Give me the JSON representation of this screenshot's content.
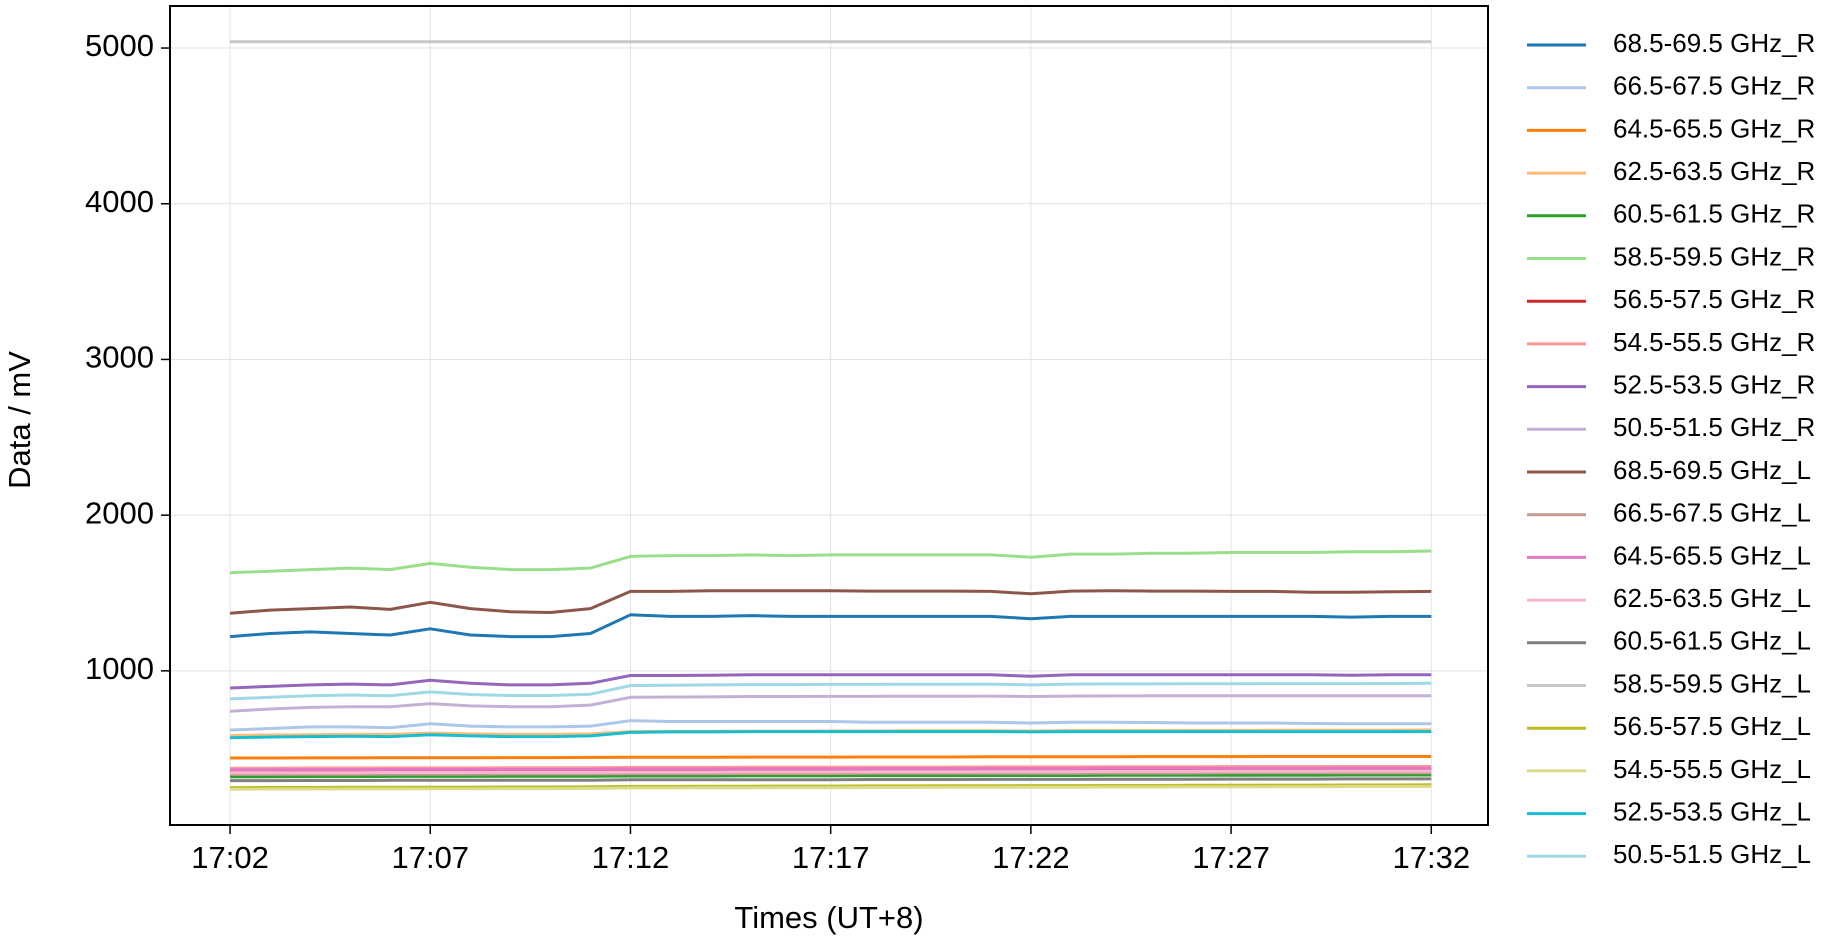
{
  "chart_data": {
    "type": "line",
    "x_label": "Times (UT+8)",
    "y_label": "Data / mV",
    "x": [
      "17:02",
      "17:03",
      "17:04",
      "17:05",
      "17:06",
      "17:07",
      "17:08",
      "17:09",
      "17:10",
      "17:11",
      "17:12",
      "17:13",
      "17:14",
      "17:15",
      "17:16",
      "17:17",
      "17:18",
      "17:19",
      "17:20",
      "17:21",
      "17:22",
      "17:23",
      "17:24",
      "17:25",
      "17:26",
      "17:27",
      "17:28",
      "17:29",
      "17:30",
      "17:31",
      "17:32"
    ],
    "xlim": [
      "17:00:30",
      "17:33:25"
    ],
    "xticks": [
      "17:02",
      "17:07",
      "17:12",
      "17:17",
      "17:22",
      "17:27",
      "17:32"
    ],
    "ylim": [
      10,
      5270
    ],
    "yticks": [
      1000,
      2000,
      3000,
      4000,
      5000
    ],
    "grid": true,
    "legend": "outside right",
    "series": [
      {
        "name": "68.5-69.5 GHz_R",
        "color": "#1f77b4",
        "values": [
          1220,
          1240,
          1250,
          1240,
          1230,
          1270,
          1230,
          1220,
          1220,
          1240,
          1360,
          1350,
          1350,
          1355,
          1350,
          1350,
          1350,
          1350,
          1350,
          1350,
          1335,
          1350,
          1350,
          1350,
          1350,
          1350,
          1350,
          1350,
          1345,
          1350,
          1350
        ]
      },
      {
        "name": "66.5-67.5 GHz_R",
        "color": "#aec7e8",
        "values": [
          620,
          630,
          640,
          640,
          635,
          660,
          645,
          640,
          640,
          645,
          680,
          675,
          675,
          675,
          675,
          675,
          670,
          670,
          670,
          670,
          665,
          670,
          670,
          668,
          665,
          665,
          665,
          662,
          660,
          660,
          660
        ]
      },
      {
        "name": "64.5-65.5 GHz_R",
        "color": "#ff7f0e",
        "values": [
          440,
          440,
          441,
          441,
          442,
          442,
          442,
          443,
          443,
          444,
          445,
          445,
          445,
          446,
          446,
          446,
          447,
          447,
          447,
          448,
          448,
          448,
          448,
          449,
          449,
          449,
          450,
          450,
          450,
          450,
          450
        ]
      },
      {
        "name": "62.5-63.5 GHz_R",
        "color": "#ffbb78",
        "values": [
          585,
          588,
          590,
          592,
          592,
          600,
          595,
          592,
          592,
          595,
          610,
          612,
          612,
          613,
          613,
          614,
          614,
          615,
          615,
          615,
          614,
          616,
          616,
          616,
          617,
          617,
          618,
          618,
          618,
          619,
          620
        ]
      },
      {
        "name": "60.5-61.5 GHz_R",
        "color": "#2ca02c",
        "values": [
          320,
          320,
          321,
          321,
          322,
          322,
          322,
          323,
          323,
          323,
          325,
          325,
          325,
          326,
          326,
          326,
          327,
          327,
          327,
          328,
          328,
          328,
          329,
          329,
          329,
          330,
          330,
          330,
          331,
          331,
          331
        ]
      },
      {
        "name": "58.5-59.5 GHz_R",
        "color": "#98df8a",
        "values": [
          1630,
          1640,
          1650,
          1660,
          1650,
          1690,
          1665,
          1650,
          1650,
          1660,
          1735,
          1740,
          1740,
          1745,
          1740,
          1745,
          1745,
          1745,
          1745,
          1745,
          1730,
          1750,
          1750,
          1755,
          1755,
          1760,
          1760,
          1760,
          1765,
          1765,
          1770
        ]
      },
      {
        "name": "56.5-57.5 GHz_R",
        "color": "#d62728",
        "values": [
          355,
          355,
          356,
          356,
          357,
          357,
          357,
          358,
          358,
          358,
          360,
          360,
          360,
          361,
          361,
          361,
          362,
          362,
          362,
          363,
          363,
          363,
          364,
          364,
          364,
          365,
          365,
          365,
          366,
          366,
          366
        ]
      },
      {
        "name": "54.5-55.5 GHz_R",
        "color": "#ff9896",
        "values": [
          375,
          375,
          376,
          376,
          377,
          377,
          377,
          378,
          378,
          378,
          380,
          380,
          380,
          381,
          381,
          381,
          382,
          382,
          382,
          383,
          383,
          383,
          384,
          384,
          384,
          385,
          385,
          385,
          386,
          386,
          386
        ]
      },
      {
        "name": "52.5-53.5 GHz_R",
        "color": "#9467bd",
        "values": [
          890,
          900,
          910,
          915,
          910,
          940,
          920,
          910,
          910,
          920,
          970,
          970,
          972,
          975,
          975,
          975,
          975,
          975,
          975,
          975,
          965,
          975,
          975,
          975,
          975,
          975,
          975,
          975,
          972,
          975,
          975
        ]
      },
      {
        "name": "50.5-51.5 GHz_R",
        "color": "#c5b0d5",
        "values": [
          740,
          755,
          765,
          770,
          770,
          790,
          775,
          770,
          770,
          780,
          830,
          832,
          833,
          835,
          835,
          836,
          836,
          837,
          837,
          838,
          835,
          838,
          839,
          840,
          840,
          840,
          840,
          840,
          840,
          840,
          840
        ]
      },
      {
        "name": "68.5-69.5 GHz_L",
        "color": "#8c564b",
        "values": [
          1370,
          1390,
          1400,
          1410,
          1395,
          1440,
          1400,
          1380,
          1375,
          1400,
          1510,
          1510,
          1515,
          1515,
          1515,
          1515,
          1512,
          1512,
          1512,
          1510,
          1495,
          1512,
          1515,
          1512,
          1512,
          1510,
          1510,
          1505,
          1505,
          1508,
          1510
        ]
      },
      {
        "name": "66.5-67.5 GHz_L",
        "color": "#c49c94",
        "values": [
          335,
          335,
          336,
          336,
          337,
          337,
          337,
          338,
          338,
          338,
          340,
          340,
          340,
          341,
          341,
          341,
          342,
          342,
          342,
          343,
          343,
          343,
          344,
          344,
          344,
          345,
          345,
          345,
          346,
          346,
          346
        ]
      },
      {
        "name": "64.5-65.5 GHz_L",
        "color": "#e377c2",
        "values": [
          365,
          365,
          366,
          366,
          367,
          367,
          367,
          368,
          368,
          368,
          370,
          370,
          370,
          371,
          371,
          371,
          372,
          372,
          372,
          373,
          373,
          373,
          374,
          374,
          374,
          375,
          375,
          375,
          376,
          376,
          376
        ]
      },
      {
        "name": "62.5-63.5 GHz_L",
        "color": "#f7b6d2",
        "values": [
          345,
          345,
          346,
          346,
          347,
          347,
          347,
          348,
          348,
          348,
          350,
          350,
          350,
          351,
          351,
          351,
          352,
          352,
          352,
          353,
          353,
          353,
          354,
          354,
          354,
          355,
          355,
          355,
          356,
          356,
          356
        ]
      },
      {
        "name": "60.5-61.5 GHz_L",
        "color": "#7f7f7f",
        "values": [
          295,
          295,
          296,
          296,
          297,
          297,
          297,
          298,
          298,
          298,
          300,
          300,
          300,
          301,
          301,
          301,
          302,
          302,
          302,
          303,
          303,
          303,
          304,
          304,
          304,
          305,
          305,
          305,
          306,
          306,
          306
        ]
      },
      {
        "name": "58.5-59.5 GHz_L",
        "color": "#c7c7c7",
        "values": [
          5040,
          5040,
          5040,
          5040,
          5040,
          5040,
          5040,
          5040,
          5040,
          5040,
          5040,
          5040,
          5040,
          5040,
          5040,
          5040,
          5040,
          5040,
          5040,
          5040,
          5040,
          5040,
          5040,
          5040,
          5040,
          5040,
          5040,
          5040,
          5040,
          5040,
          5040
        ]
      },
      {
        "name": "56.5-57.5 GHz_L",
        "color": "#bcbd22",
        "values": [
          250,
          251,
          251,
          252,
          252,
          253,
          253,
          254,
          254,
          255,
          258,
          258,
          259,
          259,
          260,
          260,
          261,
          261,
          262,
          262,
          263,
          263,
          264,
          264,
          265,
          265,
          266,
          266,
          267,
          267,
          268
        ]
      },
      {
        "name": "54.5-55.5 GHz_L",
        "color": "#dbdb8d",
        "values": [
          240,
          241,
          241,
          242,
          242,
          243,
          243,
          244,
          244,
          245,
          248,
          248,
          249,
          249,
          250,
          250,
          251,
          251,
          252,
          252,
          253,
          253,
          254,
          254,
          255,
          255,
          256,
          256,
          257,
          257,
          258
        ]
      },
      {
        "name": "52.5-53.5 GHz_L",
        "color": "#17becf",
        "values": [
          570,
          575,
          578,
          580,
          578,
          590,
          582,
          578,
          578,
          582,
          605,
          608,
          608,
          610,
          610,
          610,
          610,
          610,
          610,
          610,
          608,
          610,
          610,
          610,
          610,
          610,
          610,
          610,
          610,
          610,
          610
        ]
      },
      {
        "name": "50.5-51.5 GHz_L",
        "color": "#9edae5",
        "values": [
          820,
          830,
          840,
          845,
          840,
          865,
          848,
          842,
          842,
          850,
          905,
          908,
          910,
          912,
          912,
          913,
          913,
          914,
          914,
          915,
          910,
          915,
          916,
          916,
          917,
          917,
          918,
          918,
          918,
          919,
          920
        ]
      }
    ]
  }
}
